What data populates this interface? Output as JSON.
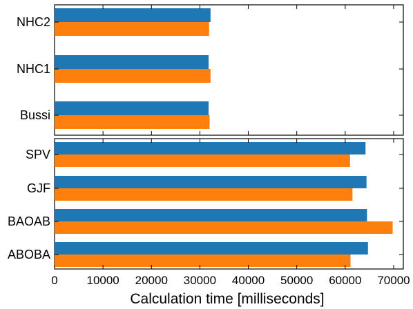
{
  "chart_data": [
    {
      "type": "bar",
      "orientation": "horizontal",
      "panel": "top",
      "categories": [
        "NHC2",
        "NHC1",
        "Bussi"
      ],
      "series": [
        {
          "color": "#1f77b4",
          "values": [
            32200,
            31800,
            31800
          ]
        },
        {
          "color": "#ff7f0e",
          "values": [
            31900,
            32200,
            32000
          ]
        }
      ],
      "xlim": [
        0,
        72000
      ]
    },
    {
      "type": "bar",
      "orientation": "horizontal",
      "panel": "bottom",
      "categories": [
        "SPV",
        "GJF",
        "BAOAB",
        "ABOBA"
      ],
      "series": [
        {
          "color": "#1f77b4",
          "values": [
            64200,
            64400,
            64500,
            64700
          ]
        },
        {
          "color": "#ff7f0e",
          "values": [
            61000,
            61500,
            69800,
            61100
          ]
        }
      ],
      "xlim": [
        0,
        72000
      ],
      "xticks": [
        0,
        10000,
        20000,
        30000,
        40000,
        50000,
        60000,
        70000
      ],
      "xlabel": "Calculation time [milliseconds]"
    }
  ]
}
